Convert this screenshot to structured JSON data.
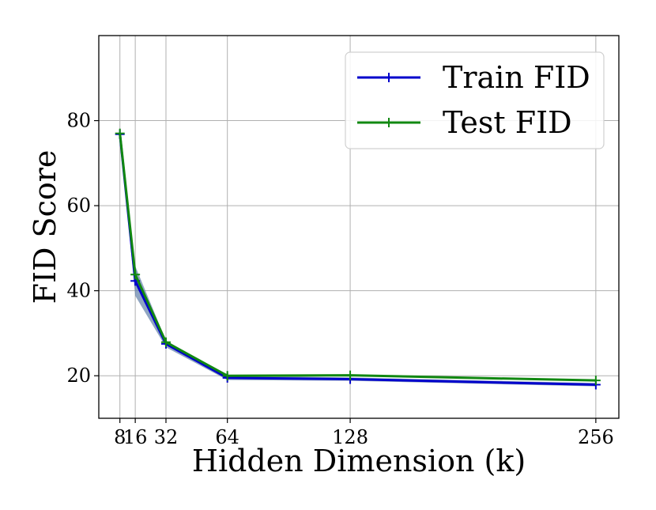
{
  "chart_data": {
    "type": "line",
    "title": "",
    "xlabel": "Hidden Dimension (k)",
    "ylabel": "FID Score",
    "x": [
      8,
      16,
      32,
      64,
      128,
      256
    ],
    "xticks": [
      8,
      16,
      32,
      64,
      128,
      256
    ],
    "xtick_labels": [
      "8",
      "16",
      "32",
      "64",
      "128",
      "256"
    ],
    "yticks": [
      20,
      40,
      60,
      80
    ],
    "ytick_labels": [
      "20",
      "40",
      "60",
      "80"
    ],
    "xlim": [
      -3,
      268
    ],
    "ylim": [
      10,
      100
    ],
    "grid": true,
    "legend_position": "top-right",
    "series": [
      {
        "name": "Train FID",
        "color": "#0000cc",
        "values": [
          76.8,
          42.3,
          27.5,
          19.5,
          19.2,
          17.9
        ],
        "band_low": [
          76.3,
          38.8,
          26.7,
          19.0,
          18.8,
          17.5
        ],
        "band_high": [
          77.3,
          45.8,
          28.3,
          20.0,
          19.6,
          18.3
        ],
        "band_color": "#5f7fa8"
      },
      {
        "name": "Test FID",
        "color": "#118811",
        "values": [
          77.0,
          43.8,
          27.9,
          20.0,
          20.1,
          18.9
        ]
      }
    ]
  }
}
